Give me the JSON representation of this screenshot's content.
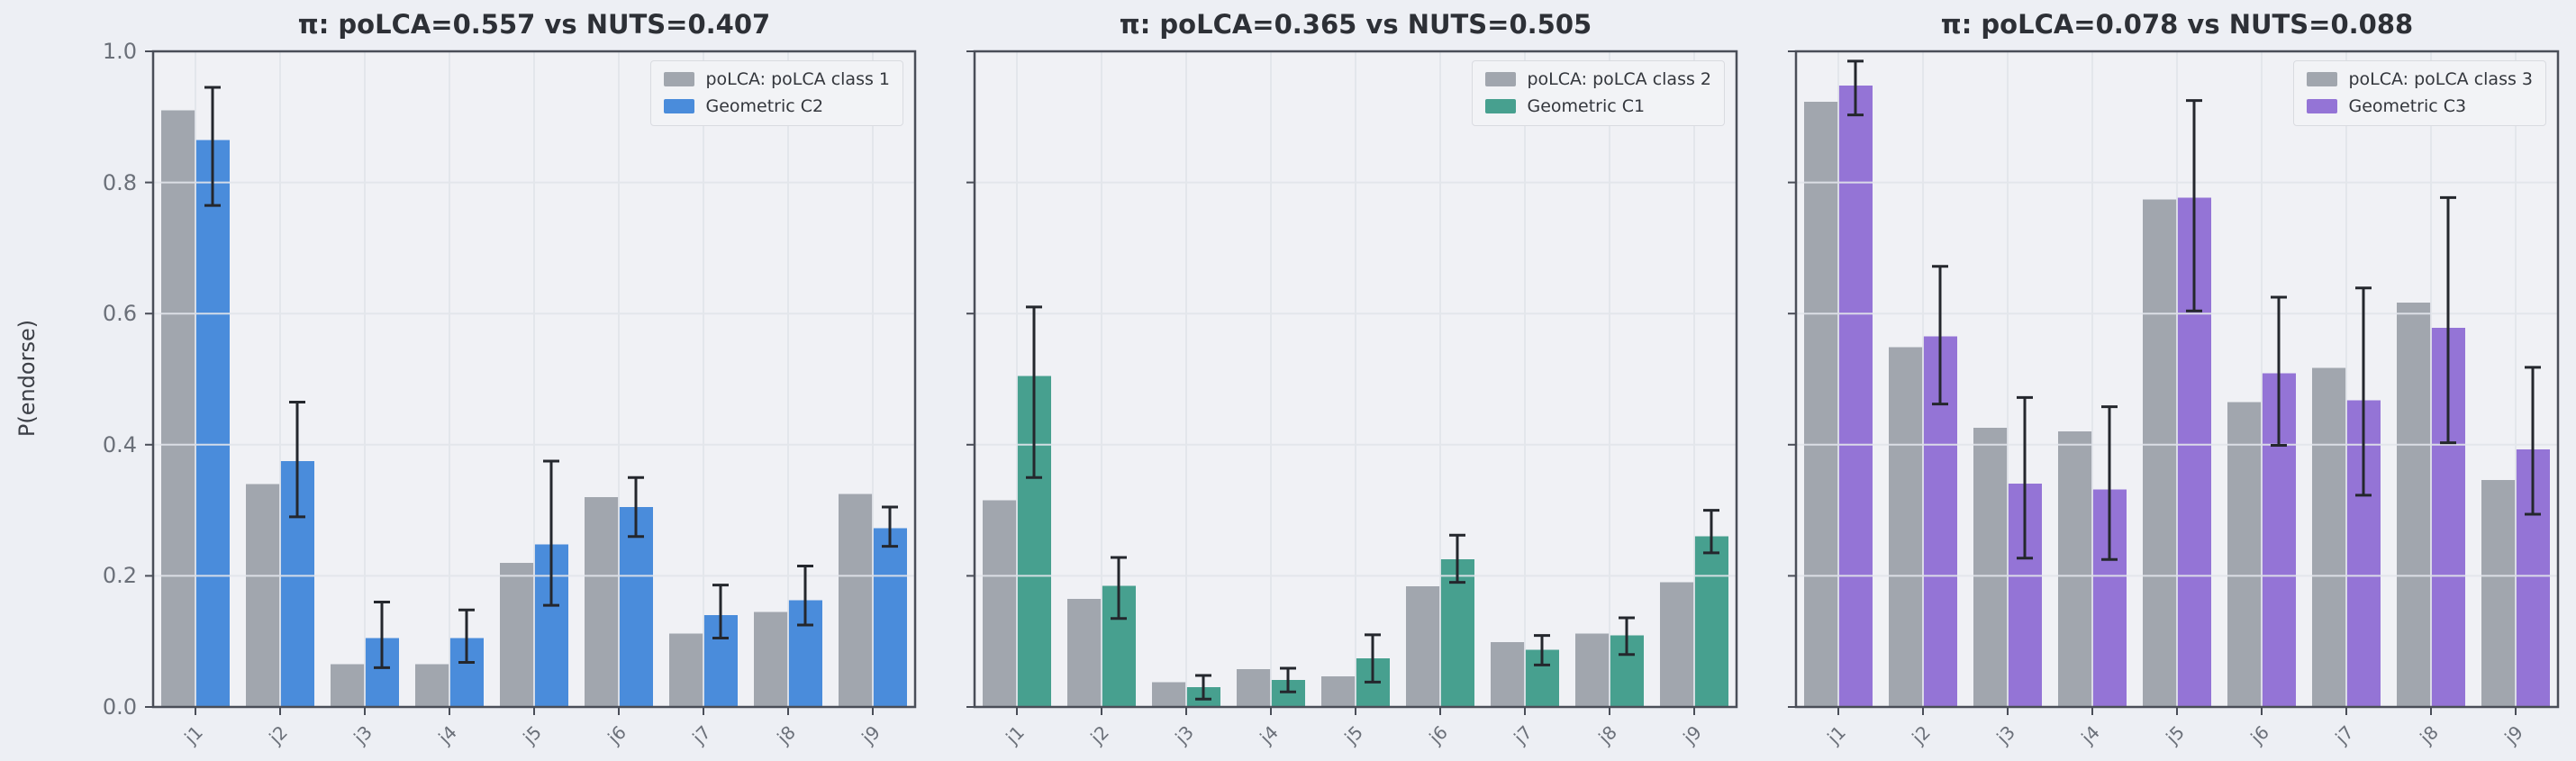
{
  "figure": {
    "ylabel": "P(endorse)",
    "background": "#edeff4",
    "plot_background": "#f0f1f5",
    "grid_color": "#e2e5eb",
    "spine_color": "#4a4e58",
    "tick_color": "#4a4e58",
    "errorbar_color": "#24272d",
    "legend_background": "#f2f3f6",
    "gray_bar_color": "#a1a6ae",
    "ytick_labels": [
      "0.0",
      "0.2",
      "0.4",
      "0.6",
      "0.8",
      "1.0"
    ]
  },
  "chart_data": [
    {
      "type": "bar",
      "title": "π: poLCA=0.557 vs NUTS=0.407",
      "xlabel": "",
      "ylabel": "P(endorse)",
      "ylim": [
        0,
        1
      ],
      "yticks": [
        0,
        0.2,
        0.4,
        0.6,
        0.8,
        1.0
      ],
      "grid": true,
      "legend_position": "upper right",
      "categories": [
        "j1",
        "j2",
        "j3",
        "j4",
        "j5",
        "j6",
        "j7",
        "j8",
        "j9"
      ],
      "series": [
        {
          "name": "poLCA: poLCA class 1",
          "color": "#a1a6ae",
          "values": [
            0.91,
            0.34,
            0.065,
            0.065,
            0.22,
            0.32,
            0.112,
            0.145,
            0.325
          ]
        },
        {
          "name": "Geometric C2",
          "color": "#4a8cdb",
          "values": [
            0.865,
            0.375,
            0.105,
            0.105,
            0.248,
            0.305,
            0.14,
            0.163,
            0.273
          ],
          "err_lo": [
            0.765,
            0.29,
            0.06,
            0.068,
            0.155,
            0.26,
            0.105,
            0.125,
            0.245
          ],
          "err_hi": [
            0.945,
            0.465,
            0.16,
            0.148,
            0.375,
            0.35,
            0.186,
            0.215,
            0.305
          ]
        }
      ]
    },
    {
      "type": "bar",
      "title": "π: poLCA=0.365 vs NUTS=0.505",
      "xlabel": "",
      "ylabel": "",
      "ylim": [
        0,
        1
      ],
      "yticks": [
        0,
        0.2,
        0.4,
        0.6,
        0.8,
        1.0
      ],
      "grid": true,
      "legend_position": "upper right",
      "categories": [
        "j1",
        "j2",
        "j3",
        "j4",
        "j5",
        "j6",
        "j7",
        "j8",
        "j9"
      ],
      "series": [
        {
          "name": "poLCA: poLCA class 2",
          "color": "#a1a6ae",
          "values": [
            0.315,
            0.165,
            0.038,
            0.058,
            0.047,
            0.184,
            0.099,
            0.112,
            0.19
          ]
        },
        {
          "name": "Geometric C1",
          "color": "#47a08f",
          "values": [
            0.505,
            0.185,
            0.03,
            0.041,
            0.074,
            0.225,
            0.087,
            0.109,
            0.26
          ],
          "err_lo": [
            0.35,
            0.135,
            0.012,
            0.023,
            0.038,
            0.19,
            0.064,
            0.08,
            0.235
          ],
          "err_hi": [
            0.61,
            0.228,
            0.048,
            0.059,
            0.11,
            0.262,
            0.109,
            0.136,
            0.3
          ]
        }
      ]
    },
    {
      "type": "bar",
      "title": "π: poLCA=0.078 vs NUTS=0.088",
      "xlabel": "",
      "ylabel": "",
      "ylim": [
        0,
        1
      ],
      "yticks": [
        0,
        0.2,
        0.4,
        0.6,
        0.8,
        1.0
      ],
      "grid": true,
      "legend_position": "upper right",
      "categories": [
        "j1",
        "j2",
        "j3",
        "j4",
        "j5",
        "j6",
        "j7",
        "j8",
        "j9"
      ],
      "series": [
        {
          "name": "poLCA: poLCA class 3",
          "color": "#a1a6ae",
          "values": [
            0.923,
            0.549,
            0.426,
            0.42,
            0.774,
            0.465,
            0.517,
            0.617,
            0.346
          ]
        },
        {
          "name": "Geometric C3",
          "color": "#9474d6",
          "values": [
            0.948,
            0.565,
            0.341,
            0.332,
            0.777,
            0.509,
            0.468,
            0.578,
            0.393
          ],
          "err_lo": [
            0.903,
            0.462,
            0.227,
            0.225,
            0.604,
            0.399,
            0.323,
            0.403,
            0.294
          ],
          "err_hi": [
            0.985,
            0.672,
            0.472,
            0.458,
            0.925,
            0.625,
            0.639,
            0.777,
            0.518
          ]
        }
      ]
    }
  ]
}
